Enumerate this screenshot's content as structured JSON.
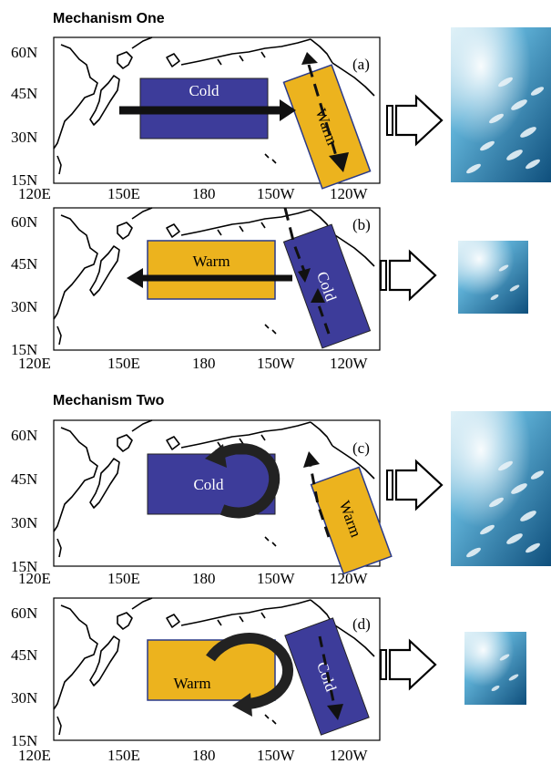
{
  "headings": {
    "mechanism_one": "Mechanism One",
    "mechanism_two": "Mechanism Two"
  },
  "axes": {
    "lat_ticks": [
      "60N",
      "45N",
      "30N",
      "15N"
    ],
    "lon_ticks": [
      "120E",
      "150E",
      "180",
      "150W",
      "120W"
    ]
  },
  "panels": [
    {
      "id": "(a)",
      "box_main": "Cold",
      "box_side": "Warm",
      "fish": "large"
    },
    {
      "id": "(b)",
      "box_main": "Warm",
      "box_side": "Cold",
      "fish": "small"
    },
    {
      "id": "(c)",
      "box_main": "Cold",
      "box_side": "Warm",
      "fish": "large"
    },
    {
      "id": "(d)",
      "box_main": "Warm",
      "box_side": "Cold",
      "fish": "small"
    }
  ],
  "colors": {
    "cold": "#3d3c9a",
    "warm": "#ecb31e",
    "ocean": "#2a79b4"
  }
}
